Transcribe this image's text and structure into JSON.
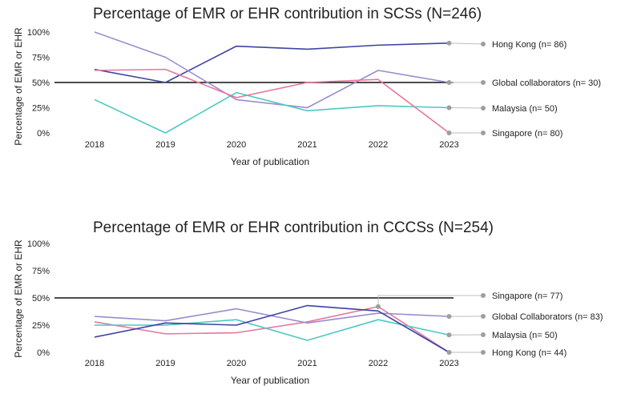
{
  "chart_data": [
    {
      "type": "line",
      "title": "Percentage of EMR or EHR contribution in SCSs (N=246)",
      "xlabel": "Year of publication",
      "ylabel": "Percentage of EMR or EHR",
      "categories": [
        "2018",
        "2019",
        "2020",
        "2021",
        "2022",
        "2023"
      ],
      "yticks": [
        "0%",
        "25%",
        "50%",
        "75%",
        "100%"
      ],
      "ylim": [
        0,
        100
      ],
      "reference_line": 50,
      "series": [
        {
          "name": "Hong Kong (n= 86)",
          "color": "#3d44a3",
          "values": [
            63,
            50,
            86,
            83,
            87,
            89
          ]
        },
        {
          "name": "Global collaborators (n= 30)",
          "color": "#9a8ccd",
          "values": [
            100,
            75,
            33,
            25,
            62,
            50
          ]
        },
        {
          "name": "Malaysia (n= 50)",
          "color": "#4cc9c3",
          "values": [
            33,
            0,
            40,
            22,
            27,
            25
          ]
        },
        {
          "name": "Singapore (n= 80)",
          "color": "#e8769a",
          "values": [
            62,
            63,
            35,
            50,
            53,
            0
          ]
        }
      ]
    },
    {
      "type": "line",
      "title": "Percentage of EMR or EHR contribution in CCCSs (N=254)",
      "xlabel": "Year of publication",
      "ylabel": "Percentage of EMR or EHR",
      "categories": [
        "2018",
        "2019",
        "2020",
        "2021",
        "2022",
        "2023"
      ],
      "yticks": [
        "0%",
        "25%",
        "50%",
        "75%",
        "100%"
      ],
      "ylim": [
        0,
        100
      ],
      "reference_line": 50,
      "series": [
        {
          "name": "Singapore (n= 77)",
          "color": "#e8769a",
          "values": [
            28,
            17,
            18,
            28,
            42,
            0
          ]
        },
        {
          "name": "Global Collaborators (n= 83)",
          "color": "#9a8ccd",
          "values": [
            33,
            29,
            40,
            27,
            36,
            33
          ]
        },
        {
          "name": "Malaysia (n= 50)",
          "color": "#4cc9c3",
          "values": [
            25,
            25,
            30,
            11,
            30,
            16
          ]
        },
        {
          "name": "Hong Kong (n= 44)",
          "color": "#3d44a3",
          "values": [
            14,
            27,
            25,
            43,
            38,
            0
          ]
        }
      ]
    }
  ]
}
